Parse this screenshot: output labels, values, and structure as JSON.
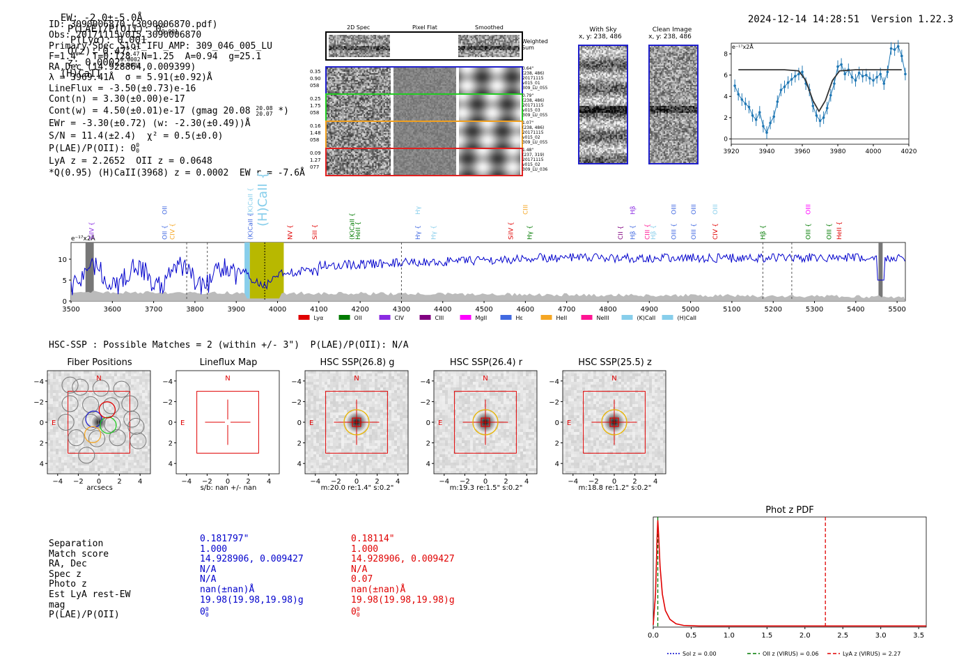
{
  "header": {
    "ew": "EW: -2.0±-5.0Å",
    "plae_label": "P(LAE)/P(OII): 0",
    "plae_sup": "0",
    "plae_sub": "0.001",
    "plya": "P(Lyα): 0.001",
    "qz_label": "Q(z): 0.47",
    "qz_sup": "0.47",
    "qz_sub": "0.47",
    "z_label": "z: 0.0002",
    "z_sup": "0.0002",
    "z_sub": "0.0002",
    "z_line": "(H)CaII",
    "timestamp": "2024-12-14 14:28:51",
    "version": "Version 1.22.3"
  },
  "info": {
    "id": "ID: 3090006870 (3090006870.pdf)",
    "obs": "Obs: 20171115v015_3090006870",
    "primary": "Primary Spec_Slot_IFU_AMP: 309_046_005_LU",
    "params": "F=1.4\"  T=0.128  N=1.25  A=0.94  g=25.1",
    "radec": "RA,Dec (14.928864,0.009399)",
    "lambda": "λ = 3969.41Å  σ = 5.91(±0.92)Å",
    "lineflux": "LineFlux = -3.50(±0.73)e-16",
    "contn": "Cont(n) = 3.30(±0.00)e-17",
    "contw": "Cont(w) = 4.50(±0.01)e-17 (gmag 20.08",
    "contw_sup": "20.08",
    "contw_sub": "20.07",
    "contw_end": " *)",
    "ewr": "EWr = -3.30(±0.72) (w: -2.30(±0.49))Å",
    "sn": "S/N = 11.4(±2.4)  χ² = 0.5(±0.0)",
    "plae": "P(LAE)/P(OII): 0",
    "plae_sup": "0",
    "plae_sub": "0",
    "lya": "LyA z = 2.2652  OII z = 0.0648",
    "q": "*Q(0.95) (H)CaII(3968) z = 0.0002  EW r = -7.6Å"
  },
  "cutouts": {
    "col_2d": "2D Spec",
    "col_flat": "Pixel Flat",
    "col_smooth": "Smoothed",
    "weighted": "Weighted\nSum",
    "rows": [
      {
        "left": [
          "0.35",
          "0.90",
          "058"
        ],
        "right": [
          "0.64\"",
          "(238, 486)",
          "20171115",
          "v015_01",
          "309_LU_055"
        ],
        "color": "#1f1fcc"
      },
      {
        "left": [
          "0.25",
          "1.75",
          "058"
        ],
        "right": [
          "0.79\"",
          "(238, 486)",
          "20171115",
          "v015_03",
          "309_LU_055"
        ],
        "color": "#22cc22"
      },
      {
        "left": [
          "0.16",
          "1.48",
          "058"
        ],
        "right": [
          "1.07\"",
          "(238, 486)",
          "20171115",
          "v015_02",
          "309_LU_055"
        ],
        "color": "#f0a020"
      },
      {
        "left": [
          "0.09",
          "1.27",
          "077"
        ],
        "right": [
          "1.48\"",
          "(237, 319)",
          "20171115",
          "v015_02",
          "309_LU_036"
        ],
        "color": "#e02020"
      }
    ]
  },
  "sky": {
    "with_sky": "With Sky",
    "with_sky_xy": "x, y: 238, 486",
    "clean": "Clean Image",
    "clean_xy": "x, y: 238, 486"
  },
  "fit_plot": {
    "ylabel": "e⁻¹⁷x2Å",
    "xticks": [
      "3920",
      "3940",
      "3960",
      "3980",
      "4000",
      "4020"
    ],
    "yticks": [
      "0",
      "2",
      "4",
      "6",
      "8"
    ]
  },
  "spectrum": {
    "ylabel": "e⁻¹⁷x2Å",
    "xticks": [
      "3500",
      "3600",
      "3700",
      "3800",
      "3900",
      "4000",
      "4100",
      "4200",
      "4300",
      "4400",
      "4500",
      "4600",
      "4700",
      "4800",
      "4900",
      "5000",
      "5100",
      "5200",
      "5300",
      "5400",
      "5500"
    ],
    "yticks": [
      "0",
      "5",
      "10"
    ],
    "legend": [
      {
        "label": "Lyα",
        "color": "#e00000"
      },
      {
        "label": "OII",
        "color": "#007a00"
      },
      {
        "label": "CIV",
        "color": "#8a2be2"
      },
      {
        "label": "CIII",
        "color": "#800080"
      },
      {
        "label": "MgII",
        "color": "#ff00ff"
      },
      {
        "label": "Hε",
        "color": "#4169e1"
      },
      {
        "label": "HeII",
        "color": "#f5a623"
      },
      {
        "label": "NeIII",
        "color": "#ff1493"
      },
      {
        "label": "(K)CaII",
        "color": "#87ceeb"
      },
      {
        "label": "(H)CaII",
        "color": "#87ceeb"
      }
    ],
    "line_labels": [
      {
        "t": "SiIV {",
        "w": 3550,
        "c": "#8a2be2",
        "up": false
      },
      {
        "t": "OII {",
        "w": 3727,
        "c": "#4169e1",
        "up": false
      },
      {
        "t": "CIV {",
        "w": 3745,
        "c": "#f5a623",
        "up": false
      },
      {
        "t": "OII",
        "w": 3727,
        "c": "#4169e1",
        "up": true
      },
      {
        "t": "(K)CaII {",
        "w": 3934,
        "c": "#4169e1",
        "up": false
      },
      {
        "t": "(K)CaII {",
        "w": 3934,
        "c": "#87ceeb",
        "up": true
      },
      {
        "t": "(H)CaII {",
        "w": 3969,
        "c": "#87ceeb",
        "up": true,
        "big": true
      },
      {
        "t": "NV {",
        "w": 4030,
        "c": "#e00000",
        "up": false
      },
      {
        "t": "SiII {",
        "w": 4090,
        "c": "#e00000",
        "up": false
      },
      {
        "t": "(K)CaII {",
        "w": 4180,
        "c": "#007a00",
        "up": false
      },
      {
        "t": "HeII {",
        "w": 4195,
        "c": "#007a00",
        "up": false
      },
      {
        "t": "Hγ {",
        "w": 4340,
        "c": "#4169e1",
        "up": false
      },
      {
        "t": "Hγ",
        "w": 4340,
        "c": "#87ceeb",
        "up": true
      },
      {
        "t": "Hγ {",
        "w": 4378,
        "c": "#87ceeb",
        "up": false
      },
      {
        "t": "SiIV {",
        "w": 4565,
        "c": "#e00000",
        "up": false
      },
      {
        "t": "CIII",
        "w": 4600,
        "c": "#f5a623",
        "up": true
      },
      {
        "t": "Hγ {",
        "w": 4610,
        "c": "#007a00",
        "up": false
      },
      {
        "t": "CII {",
        "w": 4830,
        "c": "#800080",
        "up": false
      },
      {
        "t": "Hβ {",
        "w": 4860,
        "c": "#4169e1",
        "up": false
      },
      {
        "t": "Hβ",
        "w": 4860,
        "c": "#8a2be2",
        "up": true
      },
      {
        "t": "CIII {",
        "w": 4895,
        "c": "#ff1493",
        "up": false
      },
      {
        "t": "Hβ {",
        "w": 4910,
        "c": "#87ceeb",
        "up": false
      },
      {
        "t": "OIII {",
        "w": 4959,
        "c": "#4169e1",
        "up": false
      },
      {
        "t": "OIII",
        "w": 4959,
        "c": "#4169e1",
        "up": true
      },
      {
        "t": "OIII {",
        "w": 5007,
        "c": "#4169e1",
        "up": false
      },
      {
        "t": "OIII",
        "w": 5007,
        "c": "#4169e1",
        "up": true
      },
      {
        "t": "CIV {",
        "w": 5060,
        "c": "#e00000",
        "up": false
      },
      {
        "t": "OIII",
        "w": 5060,
        "c": "#87ceeb",
        "up": true
      },
      {
        "t": "Hβ {",
        "w": 5175,
        "c": "#007a00",
        "up": false
      },
      {
        "t": "OIII {",
        "w": 5285,
        "c": "#007a00",
        "up": false
      },
      {
        "t": "OIII",
        "w": 5285,
        "c": "#ff00ff",
        "up": true
      },
      {
        "t": "OIII {",
        "w": 5335,
        "c": "#007a00",
        "up": false
      },
      {
        "t": "HeII {",
        "w": 5360,
        "c": "#e00000",
        "up": false
      }
    ]
  },
  "hsc": {
    "summary": "HSC-SSP : Possible Matches = 2 (within +/- 3\")  P(LAE)/P(OII): N/A",
    "panels": [
      {
        "title": "Fiber Positions",
        "caption": "arcsecs",
        "n": "N",
        "e": "E",
        "kind": "fiber"
      },
      {
        "title": "Lineflux Map",
        "caption": "s/b: nan +/- nan",
        "n": "N",
        "e": "E",
        "kind": "flux"
      },
      {
        "title": "HSC SSP(26.8) g",
        "caption": "m:20.0  re:1.4\"  s:0.2\"",
        "n": "N",
        "e": "E",
        "kind": "hsc"
      },
      {
        "title": "HSC SSP(26.4) r",
        "caption": "m:19.3  re:1.5\"  s:0.2\"",
        "n": "N",
        "e": "E",
        "kind": "hsc"
      },
      {
        "title": "HSC SSP(25.5) z",
        "caption": "m:18.8  re:1.2\"  s:0.2\"",
        "n": "N",
        "e": "E",
        "kind": "hsc"
      }
    ],
    "ticks": [
      "−4",
      "−2",
      "0",
      "2",
      "4"
    ]
  },
  "matches": {
    "labels": [
      "Separation",
      "Match score",
      "RA, Dec",
      "Spec z",
      "Photo z",
      "Est LyA rest-EW",
      "mag",
      "P(LAE)/P(OII)"
    ],
    "blue": [
      "0.181797\"",
      "1.000",
      "14.928906, 0.009427",
      "N/A",
      "N/A",
      "nan(±nan)Å",
      "19.98(19.98,19.98)g",
      "0"
    ],
    "red": [
      "0.18114\"",
      "1.000",
      "14.928906, 0.009427",
      "N/A",
      "0.07",
      "nan(±nan)Å",
      "19.98(19.98,19.98)g",
      "0"
    ],
    "sup": "0",
    "sub": "0"
  },
  "chart_data": [
    {
      "type": "line",
      "title": "Phot z PDF",
      "xlim": [
        0,
        3.6
      ],
      "xticks": [
        "0.0",
        "0.5",
        "1.0",
        "1.5",
        "2.0",
        "2.5",
        "3.0",
        "3.5"
      ],
      "series": [
        {
          "name": "PDF",
          "color": "#e00000",
          "x": [
            0,
            0.03,
            0.05,
            0.06,
            0.07,
            0.09,
            0.12,
            0.16,
            0.22,
            0.3,
            0.4,
            0.6,
            1.0,
            2.0,
            3.6
          ],
          "y": [
            0.02,
            0.3,
            0.8,
            0.97,
            0.85,
            0.55,
            0.3,
            0.15,
            0.07,
            0.03,
            0.015,
            0.01,
            0.01,
            0.01,
            0.01
          ]
        }
      ],
      "vlines": [
        {
          "label": "Sol z = 0.00",
          "x": 0.0,
          "color": "#0000cc",
          "style": "dotted"
        },
        {
          "label": "OII z (VIRUS) = 0.06",
          "x": 0.06,
          "color": "#007a00",
          "style": "dashed"
        },
        {
          "label": "LyA z (VIRUS) = 2.27",
          "x": 2.27,
          "color": "#e00000",
          "style": "dashed"
        }
      ]
    },
    {
      "type": "line",
      "title": "",
      "xlabel": "",
      "ylabel": "e⁻¹⁷x2Å",
      "xlim": [
        3920,
        4020
      ],
      "ylim": [
        -0.5,
        9
      ],
      "series": [
        {
          "name": "data",
          "color": "#1f77b4",
          "x": [
            3922,
            3924,
            3926,
            3928,
            3930,
            3932,
            3934,
            3936,
            3938,
            3940,
            3942,
            3944,
            3946,
            3948,
            3950,
            3952,
            3954,
            3956,
            3958,
            3960,
            3962,
            3964,
            3966,
            3968,
            3970,
            3972,
            3974,
            3976,
            3978,
            3980,
            3982,
            3984,
            3986,
            3988,
            3990,
            3992,
            3994,
            3996,
            3998,
            4000,
            4002,
            4004,
            4006,
            4008,
            4010,
            4012,
            4014,
            4016,
            4018
          ],
          "y": [
            5,
            4.2,
            3.7,
            3.3,
            3,
            2.2,
            1.8,
            2.5,
            1.2,
            0.6,
            1.5,
            2.1,
            3.5,
            4.6,
            4.9,
            5.3,
            5.6,
            5.9,
            6.1,
            6.3,
            5.2,
            4.6,
            3.1,
            2.2,
            1.7,
            2,
            2.9,
            4.1,
            5.2,
            6.8,
            7,
            6.1,
            6.5,
            5.8,
            5.5,
            6.2,
            5.9,
            6,
            5.7,
            5.5,
            5.8,
            6.1,
            5.2,
            6.3,
            8.5,
            8.4,
            8.7,
            7.8,
            6.1
          ]
        },
        {
          "name": "fit",
          "color": "#333333",
          "x": [
            3924,
            3950,
            3958,
            3962,
            3966,
            3969.4,
            3973,
            3977,
            3981,
            3990,
            4016
          ],
          "y": [
            6.5,
            6.5,
            6.4,
            5.5,
            3.6,
            2.6,
            3.6,
            5.5,
            6.4,
            6.5,
            6.5
          ]
        }
      ]
    },
    {
      "type": "line",
      "title": "",
      "xlabel": "",
      "ylabel": "e⁻¹⁷x2Å",
      "xlim": [
        3500,
        5520
      ],
      "ylim": [
        0,
        14
      ],
      "series": [
        {
          "name": "spectrum",
          "color": "#0000cc"
        }
      ],
      "highlight": [
        3920,
        4015
      ]
    }
  ]
}
